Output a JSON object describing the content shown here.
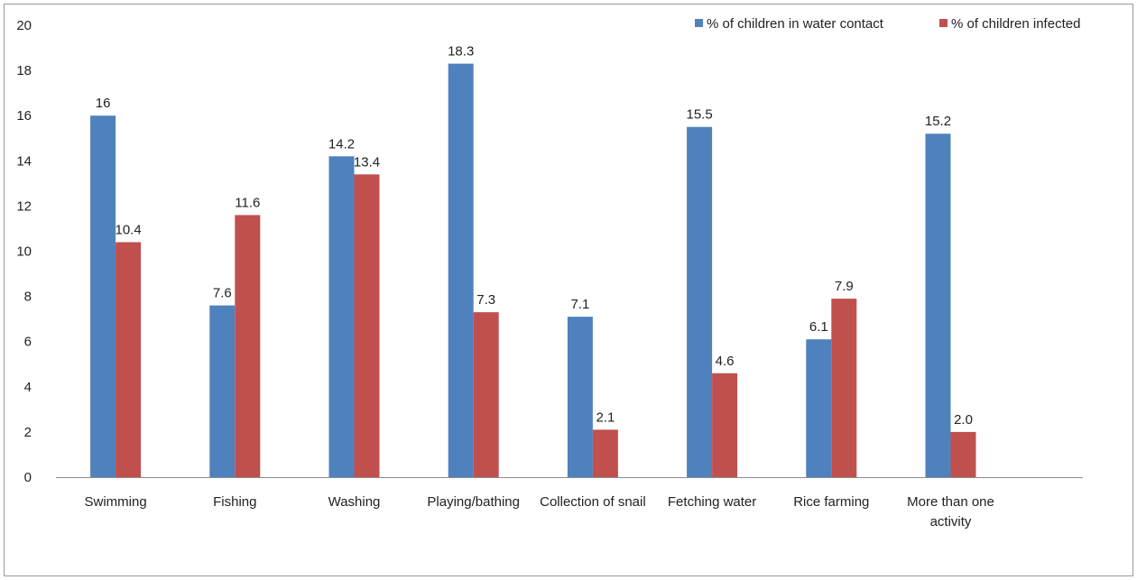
{
  "chart_data": {
    "type": "bar",
    "title": "",
    "xlabel": "",
    "ylabel": "",
    "ylim": [
      0,
      20
    ],
    "yticks": [
      0,
      2,
      4,
      6,
      8,
      10,
      12,
      14,
      16,
      18,
      20
    ],
    "grid": false,
    "legend_position": "top-right",
    "categories": [
      [
        "Swimming"
      ],
      [
        "Fishing"
      ],
      [
        "Washing"
      ],
      [
        "Playing/bathing"
      ],
      [
        "Collection of snail"
      ],
      [
        "Fetching water"
      ],
      [
        "Rice farming"
      ],
      [
        "More than one",
        "activity"
      ]
    ],
    "series": [
      {
        "name": "% of children in water contact",
        "color": "#4F81BD",
        "values": [
          16,
          7.6,
          14.2,
          18.3,
          7.1,
          15.5,
          6.1,
          15.2
        ],
        "labels": [
          "16",
          "7.6",
          "14.2",
          "18.3",
          "7.1",
          "15.5",
          "6.1",
          "15.2"
        ]
      },
      {
        "name": "% of children infected",
        "color": "#C0504D",
        "values": [
          10.4,
          11.6,
          13.4,
          7.3,
          2.1,
          4.6,
          7.9,
          2.0
        ],
        "labels": [
          "10.4",
          "11.6",
          "13.4",
          "7.3",
          "2.1",
          "4.6",
          "7.9",
          "2.0"
        ]
      }
    ]
  }
}
